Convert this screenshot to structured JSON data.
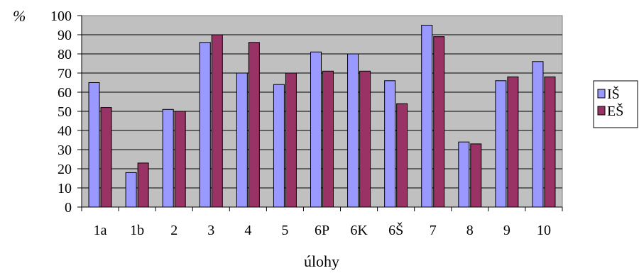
{
  "chart_data": {
    "type": "bar",
    "title": "",
    "xlabel": "úlohy",
    "ylabel": "%",
    "ylim": [
      0,
      100
    ],
    "yticks": [
      0,
      10,
      20,
      30,
      40,
      50,
      60,
      70,
      80,
      90,
      100
    ],
    "grid": true,
    "legend_position": "right",
    "categories": [
      "1a",
      "1b",
      "2",
      "3",
      "4",
      "5",
      "6P",
      "6K",
      "6Š",
      "7",
      "8",
      "9",
      "10"
    ],
    "series": [
      {
        "name": "IŠ",
        "color": "#9999ff",
        "values": [
          65,
          18,
          51,
          86,
          70,
          64,
          81,
          80,
          66,
          95,
          34,
          66,
          76
        ]
      },
      {
        "name": "EŠ",
        "color": "#993366",
        "values": [
          52,
          23,
          50,
          90,
          86,
          70,
          71,
          71,
          54,
          89,
          33,
          68,
          68
        ]
      }
    ],
    "plot_background": "#c0c0c0"
  }
}
